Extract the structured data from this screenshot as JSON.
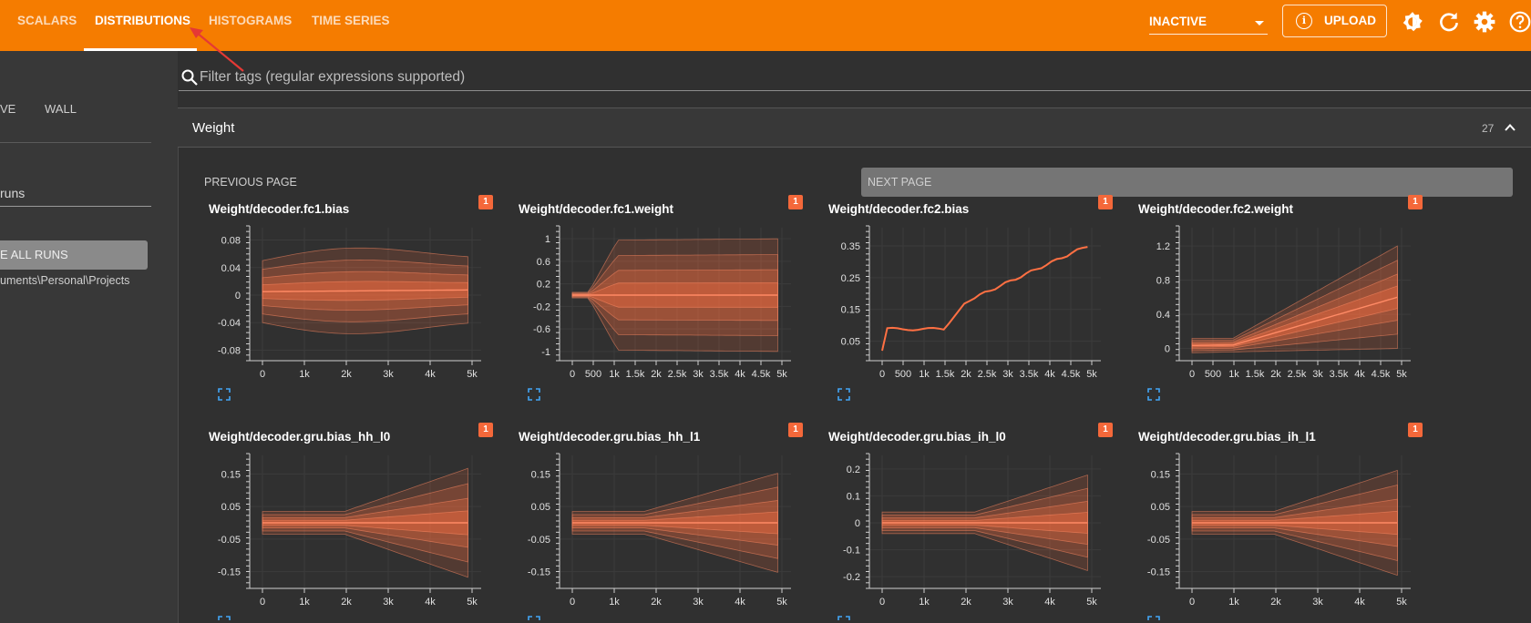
{
  "header": {
    "tabs": [
      {
        "label": "SCALARS",
        "active": false
      },
      {
        "label": "DISTRIBUTIONS",
        "active": true
      },
      {
        "label": "HISTOGRAMS",
        "active": false
      },
      {
        "label": "TIME SERIES",
        "active": false
      }
    ],
    "run_selector": "INACTIVE",
    "upload_label": "UPLOAD",
    "icons": [
      "brightness-icon",
      "refresh-icon",
      "settings-icon",
      "help-icon"
    ],
    "accent_color": "#f57c00"
  },
  "sidebar": {
    "tab_partial": "VE",
    "tab_wall": "WALL",
    "filter_runs": "runs",
    "toggle_all_button": "E ALL RUNS",
    "run_path": "uments\\Personal\\Projects"
  },
  "search": {
    "placeholder": "Filter tags (regular expressions supported)"
  },
  "group": {
    "title": "Weight",
    "count": "27",
    "prev_page": "PREVIOUS PAGE",
    "next_page": "NEXT PAGE"
  },
  "chart_data": [
    {
      "type": "area",
      "title": "Weight/decoder.fc1.bias",
      "badge": "1",
      "xticks": [
        "0",
        "1k",
        "2k",
        "3k",
        "4k",
        "5k"
      ],
      "yticks": [
        "0.08",
        "0.04",
        "0",
        "-0.04",
        "-0.08"
      ],
      "xlim": [
        0,
        5000
      ],
      "ylim": [
        -0.09,
        0.09
      ]
    },
    {
      "type": "area",
      "title": "Weight/decoder.fc1.weight",
      "badge": "1",
      "xticks": [
        "0",
        "500",
        "1k",
        "1.5k",
        "2k",
        "2.5k",
        "3k",
        "3.5k",
        "4k",
        "4.5k",
        "5k"
      ],
      "yticks": [
        "1",
        "0.6",
        "0.2",
        "-0.2",
        "-0.6",
        "-1"
      ],
      "xlim": [
        0,
        5000
      ],
      "ylim": [
        -1.1,
        1.1
      ]
    },
    {
      "type": "line",
      "title": "Weight/decoder.fc2.bias",
      "badge": "1",
      "xticks": [
        "0",
        "500",
        "1k",
        "1.5k",
        "2k",
        "2.5k",
        "3k",
        "3.5k",
        "4k",
        "4.5k",
        "5k"
      ],
      "yticks": [
        "0.35",
        "0.25",
        "0.15",
        "0.05"
      ],
      "xlim": [
        0,
        5000
      ],
      "ylim": [
        0.0,
        0.39
      ]
    },
    {
      "type": "area",
      "title": "Weight/decoder.fc2.weight",
      "badge": "1",
      "xticks": [
        "0",
        "500",
        "1k",
        "1.5k",
        "2k",
        "2.5k",
        "3k",
        "3.5k",
        "4k",
        "4.5k",
        "5k"
      ],
      "yticks": [
        "1.2",
        "0.8",
        "0.4",
        "0"
      ],
      "xlim": [
        0,
        5000
      ],
      "ylim": [
        -0.1,
        1.35
      ]
    },
    {
      "type": "area",
      "title": "Weight/decoder.gru.bias_hh_l0",
      "badge": "1",
      "xticks": [
        "0",
        "1k",
        "2k",
        "3k",
        "4k",
        "5k"
      ],
      "yticks": [
        "0.15",
        "0.05",
        "-0.05",
        "-0.15"
      ],
      "xlim": [
        0,
        5000
      ],
      "ylim": [
        -0.19,
        0.19
      ]
    },
    {
      "type": "area",
      "title": "Weight/decoder.gru.bias_hh_l1",
      "badge": "1",
      "xticks": [
        "0",
        "1k",
        "2k",
        "3k",
        "4k",
        "5k"
      ],
      "yticks": [
        "0.15",
        "0.05",
        "-0.05",
        "-0.15"
      ],
      "xlim": [
        0,
        5000
      ],
      "ylim": [
        -0.19,
        0.19
      ]
    },
    {
      "type": "area",
      "title": "Weight/decoder.gru.bias_ih_l0",
      "badge": "1",
      "xticks": [
        "0",
        "1k",
        "2k",
        "3k",
        "4k",
        "5k"
      ],
      "yticks": [
        "0.2",
        "0.1",
        "0",
        "-0.1",
        "-0.2"
      ],
      "xlim": [
        0,
        5000
      ],
      "ylim": [
        -0.23,
        0.23
      ]
    },
    {
      "type": "area",
      "title": "Weight/decoder.gru.bias_ih_l1",
      "badge": "1",
      "xticks": [
        "0",
        "1k",
        "2k",
        "3k",
        "4k",
        "5k"
      ],
      "yticks": [
        "0.15",
        "0.05",
        "-0.05",
        "-0.15"
      ],
      "xlim": [
        0,
        5000
      ],
      "ylim": [
        -0.19,
        0.19
      ]
    }
  ]
}
